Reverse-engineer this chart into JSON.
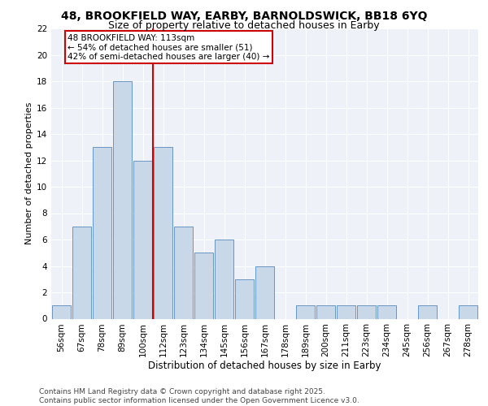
{
  "title1": "48, BROOKFIELD WAY, EARBY, BARNOLDSWICK, BB18 6YQ",
  "title2": "Size of property relative to detached houses in Earby",
  "xlabel": "Distribution of detached houses by size in Earby",
  "ylabel": "Number of detached properties",
  "categories": [
    "56sqm",
    "67sqm",
    "78sqm",
    "89sqm",
    "100sqm",
    "112sqm",
    "123sqm",
    "134sqm",
    "145sqm",
    "156sqm",
    "167sqm",
    "178sqm",
    "189sqm",
    "200sqm",
    "211sqm",
    "223sqm",
    "234sqm",
    "245sqm",
    "256sqm",
    "267sqm",
    "278sqm"
  ],
  "values": [
    1,
    7,
    13,
    18,
    12,
    13,
    7,
    5,
    6,
    3,
    4,
    0,
    1,
    1,
    1,
    1,
    1,
    0,
    1,
    0,
    1
  ],
  "bar_color": "#c8d8e8",
  "bar_edge_color": "#5588bb",
  "vline_color": "#cc0000",
  "annotation_text": "48 BROOKFIELD WAY: 113sqm\n← 54% of detached houses are smaller (51)\n42% of semi-detached houses are larger (40) →",
  "annotation_box_color": "#ffffff",
  "annotation_box_edge_color": "#cc0000",
  "background_color": "#eef2f8",
  "fig_background": "#ffffff",
  "ylim": [
    0,
    22
  ],
  "yticks": [
    0,
    2,
    4,
    6,
    8,
    10,
    12,
    14,
    16,
    18,
    20,
    22
  ],
  "property_line_idx": 5,
  "title1_fontsize": 10,
  "title2_fontsize": 9,
  "xlabel_fontsize": 8.5,
  "ylabel_fontsize": 8,
  "tick_fontsize": 7.5,
  "annotation_fontsize": 7.5,
  "footer_fontsize": 6.5,
  "footer": "Contains HM Land Registry data © Crown copyright and database right 2025.\nContains public sector information licensed under the Open Government Licence v3.0."
}
